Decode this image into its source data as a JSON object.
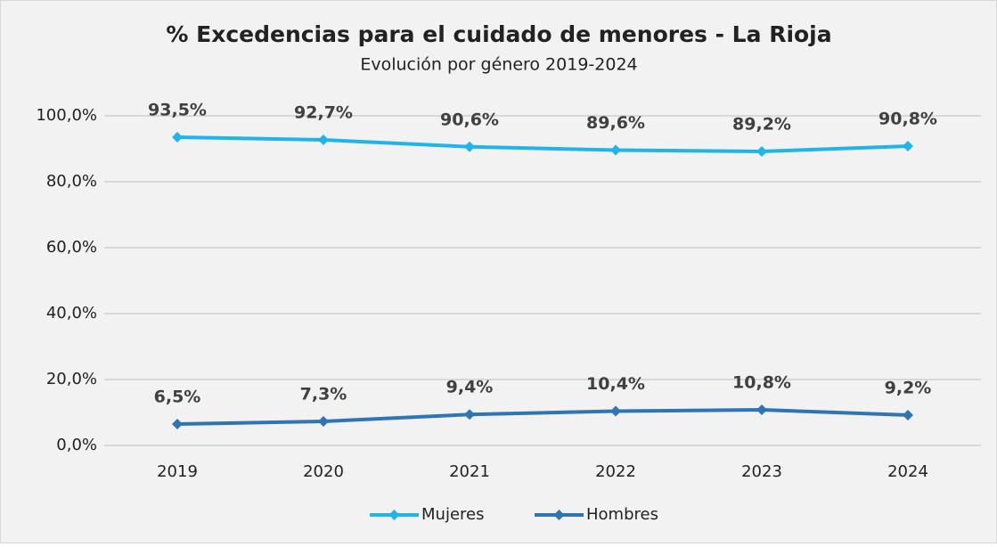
{
  "chart_data": {
    "type": "line",
    "title": "% Excedencias para el cuidado de menores - La Rioja",
    "subtitle": "Evolución por género 2019-2024",
    "categories": [
      "2019",
      "2020",
      "2021",
      "2022",
      "2023",
      "2024"
    ],
    "series": [
      {
        "name": "Mujeres",
        "color": "#1fb4ea",
        "values": [
          93.5,
          92.7,
          90.6,
          89.6,
          89.2,
          90.8
        ],
        "value_labels": [
          "93,5%",
          "92,7%",
          "90,6%",
          "89,6%",
          "89,2%",
          "90,8%"
        ]
      },
      {
        "name": "Hombres",
        "color": "#2e75b6",
        "values": [
          6.5,
          7.3,
          9.4,
          10.4,
          10.8,
          9.2
        ],
        "value_labels": [
          "6,5%",
          "7,3%",
          "9,4%",
          "10,4%",
          "10,8%",
          "9,2%"
        ]
      }
    ],
    "ylim": [
      0,
      100
    ],
    "yticks": [
      {
        "value": 0,
        "label": "0,0%"
      },
      {
        "value": 20,
        "label": "20,0%"
      },
      {
        "value": 40,
        "label": "40,0%"
      },
      {
        "value": 60,
        "label": "60,0%"
      },
      {
        "value": 80,
        "label": "80,0%"
      },
      {
        "value": 100,
        "label": "100,0%"
      }
    ],
    "grid": true,
    "legend": "bottom"
  }
}
